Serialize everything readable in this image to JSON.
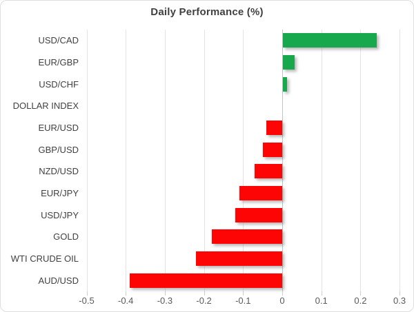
{
  "chart_data": {
    "type": "bar",
    "orientation": "horizontal",
    "title": "Daily Performance (%)",
    "categories": [
      "USD/CAD",
      "EUR/GBP",
      "USD/CHF",
      "DOLLAR INDEX",
      "EUR/USD",
      "GBP/USD",
      "NZD/USD",
      "EUR/JPY",
      "USD/JPY",
      "GOLD",
      "WTI CRUDE OIL",
      "AUD/USD"
    ],
    "values": [
      0.24,
      0.03,
      0.01,
      0.0,
      -0.04,
      -0.05,
      -0.07,
      -0.11,
      -0.12,
      -0.18,
      -0.22,
      -0.39
    ],
    "xlabel": "",
    "ylabel": "",
    "xlim": [
      -0.5,
      0.3
    ],
    "x_ticks": [
      -0.5,
      -0.4,
      -0.3,
      -0.2,
      -0.1,
      0,
      0.1,
      0.2,
      0.3
    ],
    "x_tick_labels": [
      "-0.5",
      "-0.4",
      "-0.3",
      "-0.2",
      "-0.1",
      "0",
      "0.1",
      "0.2",
      "0.3"
    ],
    "grid": true,
    "legend": "none",
    "colors": {
      "positive": "#17a84d",
      "negative": "#fe0505"
    }
  }
}
